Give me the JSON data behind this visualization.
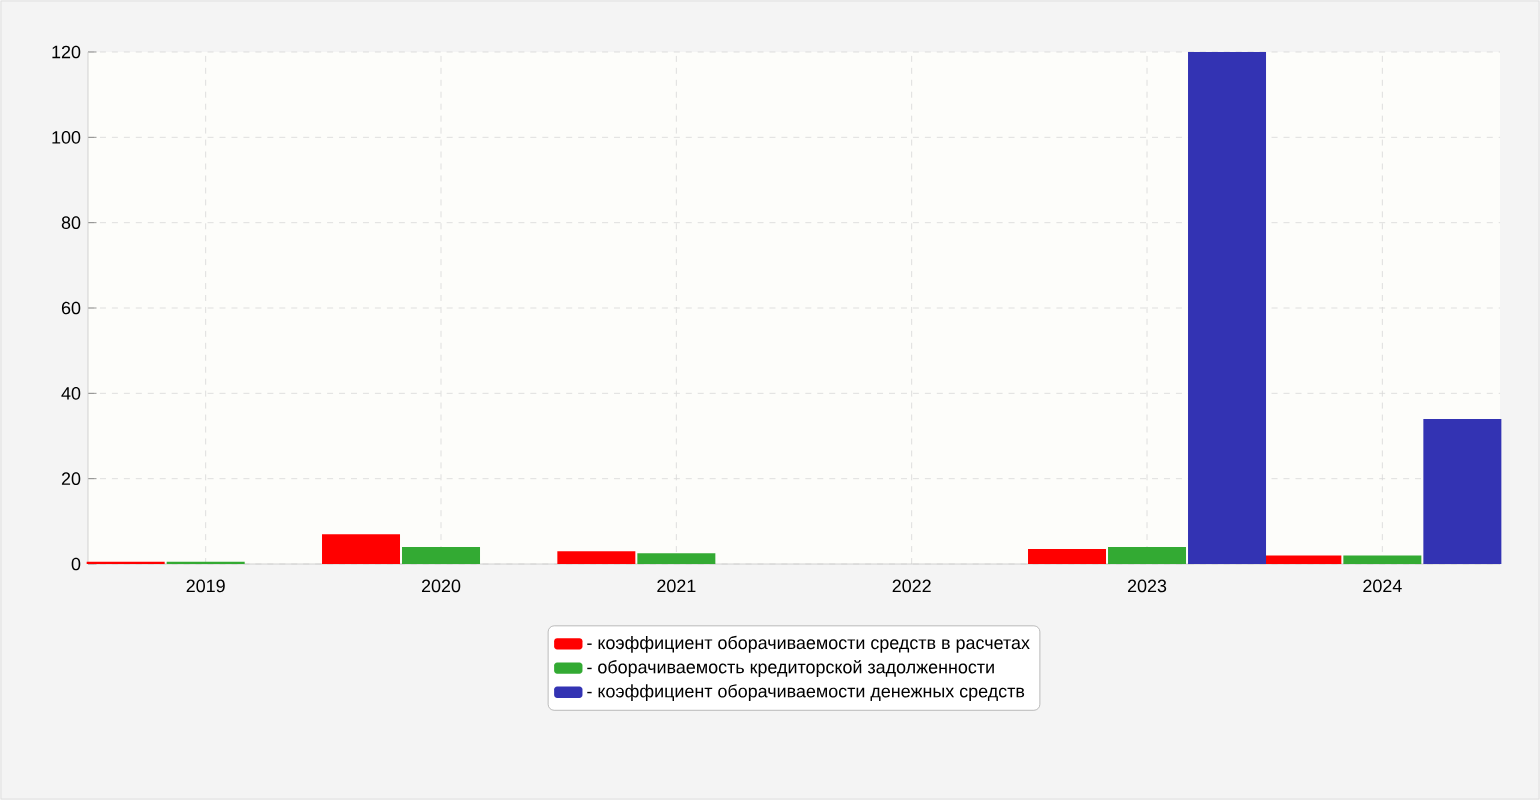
{
  "chart_data": {
    "type": "bar",
    "categories": [
      "2019",
      "2020",
      "2021",
      "2022",
      "2023",
      "2024"
    ],
    "series": [
      {
        "name": "- коэффициент оборачиваемости средств в расчетах",
        "color": "#ff0000",
        "values": [
          0.5,
          7,
          3,
          null,
          3.5,
          2
        ]
      },
      {
        "name": "- оборачиваемость кредиторской задолженности",
        "color": "#33aa33",
        "values": [
          0.5,
          4,
          2.5,
          null,
          4,
          2
        ]
      },
      {
        "name": "- коэффициент оборачиваемости денежных средств",
        "color": "#3333b3",
        "values": [
          null,
          null,
          null,
          null,
          120,
          34
        ]
      }
    ],
    "ylim": [
      0,
      120
    ],
    "yticks": [
      0,
      20,
      40,
      60,
      80,
      100,
      120
    ],
    "grid": true,
    "legend": "bottom"
  }
}
